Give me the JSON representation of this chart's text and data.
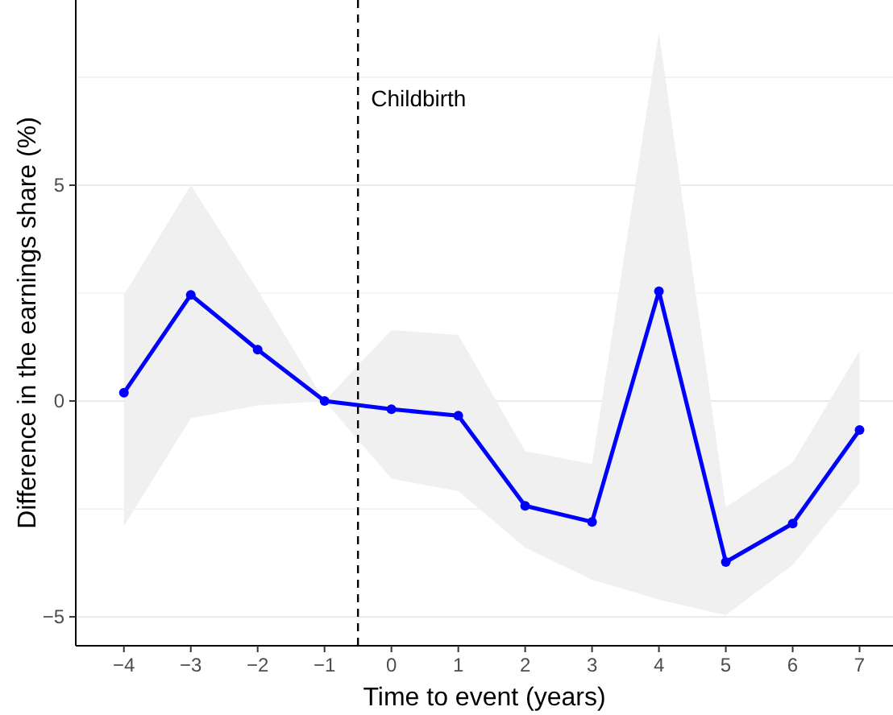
{
  "chart_data": {
    "type": "line",
    "xlabel": "Time to event (years)",
    "ylabel": "Difference in the earnings share (%)",
    "x": [
      -4,
      -3,
      -2,
      -1,
      0,
      1,
      2,
      3,
      4,
      5,
      6,
      7
    ],
    "series": [
      {
        "color": "#0000ff",
        "values": [
          0.19,
          2.46,
          1.19,
          0,
          -0.19,
          -0.34,
          -2.43,
          -2.8,
          2.54,
          -3.73,
          -2.84,
          -0.67
        ],
        "lower": [
          -2.9,
          -0.4,
          -0.1,
          0,
          -1.8,
          -2.09,
          -3.4,
          -4.14,
          -4.6,
          -4.96,
          -3.8,
          -1.9
        ],
        "upper": [
          2.46,
          5.0,
          2.57,
          0,
          1.64,
          1.53,
          -1.16,
          -1.46,
          8.55,
          -2.46,
          -1.42,
          1.16
        ]
      }
    ],
    "xlim": [
      -4.72,
      7.5
    ],
    "ylim": [
      -5.67,
      9.29
    ],
    "xticks": [
      -4,
      -3,
      -2,
      -1,
      0,
      1,
      2,
      3,
      4,
      5,
      6,
      7
    ],
    "yticks": [
      {
        "value": -5,
        "label": "−5"
      },
      {
        "value": -2.5,
        "label": null
      },
      0,
      {
        "value": 2.5,
        "label": null
      },
      5,
      {
        "value": 7.5,
        "label": null
      }
    ],
    "grid": "y",
    "marker": "circle",
    "line_style": "solid",
    "ref_lines": [
      {
        "axis": "x",
        "value": -0.5,
        "label": "Childbirth",
        "line_style": "dashed",
        "color": "#000000"
      }
    ]
  }
}
